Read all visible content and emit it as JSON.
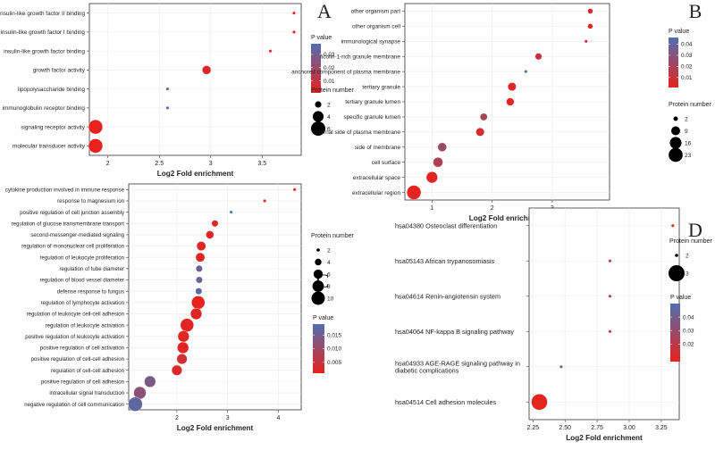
{
  "chart_data": [
    {
      "panel": "A",
      "type": "scatter",
      "xlabel": "Log2 Fold enrichment",
      "xlim": [
        1.82,
        3.88
      ],
      "xticks": [
        2,
        2.5,
        3,
        3.5
      ],
      "xtick_labels": [
        "2",
        "2.5",
        "3",
        "3.5"
      ],
      "categories": [
        "insulin-like growth factor II binding",
        "insulin-like growth factor I binding",
        "insulin-like growth factor binding",
        "growth factor activity",
        "lipopolysaccharide binding",
        "immunoglobulin receptor binding",
        "signaling receptor activity",
        "molecular transducer activity"
      ],
      "points": [
        {
          "x": 3.81,
          "pvalue": 0.003,
          "count": 1
        },
        {
          "x": 3.81,
          "pvalue": 0.003,
          "count": 1
        },
        {
          "x": 3.58,
          "pvalue": 0.005,
          "count": 1
        },
        {
          "x": 2.96,
          "pvalue": 0.004,
          "count": 3
        },
        {
          "x": 2.58,
          "pvalue": 0.037,
          "count": 1
        },
        {
          "x": 2.58,
          "pvalue": 0.037,
          "count": 1
        },
        {
          "x": 1.88,
          "pvalue": 0.001,
          "count": 6
        },
        {
          "x": 1.88,
          "pvalue": 0.001,
          "count": 6
        }
      ],
      "pvalue_legend": {
        "title": "P value",
        "ticks": [
          0.03,
          0.02,
          0.01
        ],
        "tick_labels": [
          "0.03",
          "0.02",
          "0.01"
        ],
        "range": [
          0.001,
          0.038
        ]
      },
      "size_legend": {
        "title": "Protein number",
        "values": [
          2,
          4,
          6
        ],
        "labels": [
          "2",
          "4",
          "6"
        ],
        "range": [
          1,
          6
        ]
      }
    },
    {
      "panel": "B",
      "type": "scatter",
      "xlabel": "Log2 Fold enrichment",
      "xlim": [
        0.55,
        3.95
      ],
      "xticks": [
        1,
        2,
        3
      ],
      "xtick_labels": [
        "1",
        "2",
        "3"
      ],
      "categories": [
        "other organism part",
        "other organism cell",
        "immunological synapse",
        "ficolin-1-rich granule membrane",
        "anchored component of plasma membrane",
        "tertiary granule",
        "tertiary granule lumen",
        "specific granule lumen",
        "external side of plasma membrane",
        "side of membrane",
        "cell surface",
        "extracellular space",
        "extracellular region"
      ],
      "points": [
        {
          "x": 3.63,
          "pvalue": 0.004,
          "count": 3
        },
        {
          "x": 3.63,
          "pvalue": 0.004,
          "count": 3
        },
        {
          "x": 3.56,
          "pvalue": 0.004,
          "count": 1
        },
        {
          "x": 2.77,
          "pvalue": 0.01,
          "count": 5
        },
        {
          "x": 2.56,
          "pvalue": 0.045,
          "count": 1
        },
        {
          "x": 2.33,
          "pvalue": 0.004,
          "count": 8
        },
        {
          "x": 2.3,
          "pvalue": 0.004,
          "count": 7
        },
        {
          "x": 1.86,
          "pvalue": 0.02,
          "count": 6
        },
        {
          "x": 1.8,
          "pvalue": 0.007,
          "count": 8
        },
        {
          "x": 1.17,
          "pvalue": 0.025,
          "count": 9
        },
        {
          "x": 1.1,
          "pvalue": 0.018,
          "count": 11
        },
        {
          "x": 1.0,
          "pvalue": 0.003,
          "count": 15
        },
        {
          "x": 0.7,
          "pvalue": 0.002,
          "count": 24
        }
      ],
      "pvalue_legend": {
        "title": "P value",
        "ticks": [
          0.04,
          0.03,
          0.02,
          0.01
        ],
        "tick_labels": [
          "0.04",
          "0.03",
          "0.02",
          "0.01"
        ],
        "range": [
          0.001,
          0.046
        ]
      },
      "size_legend": {
        "title": "Protein number",
        "values": [
          2,
          9,
          16,
          23
        ],
        "labels": [
          "2",
          "9",
          "16",
          "23"
        ],
        "range": [
          1,
          24
        ]
      }
    },
    {
      "panel": "C",
      "type": "scatter",
      "xlabel": "Log2 Fold enrichment",
      "xlim": [
        1.05,
        4.45
      ],
      "xticks": [
        2,
        3,
        4
      ],
      "xtick_labels": [
        "2",
        "3",
        "4"
      ],
      "categories": [
        "cytokine production involved in immune response",
        "response to magnesium ion",
        "positive regulation of cell junction assembly",
        "regulation of glucose transmembrane transport",
        "second-messenger-mediated signaling",
        "regulation of mononuclear cell proliferation",
        "regulation of leukocyte proliferation",
        "regulation of tube diameter",
        "regulation of blood vessel diameter",
        "defense response to fungus",
        "regulation of lymphocyte activation",
        "regulation of leukocyte cell-cell adhesion",
        "regulation of leukocyte activation",
        "positive regulation of leukocyte activation",
        "positive regulation of cell activation",
        "positive regulation of cell-cell adhesion",
        "regulation of cell-cell adhesion",
        "positive regulation of cell adhesion",
        "intracellular signal transduction",
        "negative regulation of cell communication"
      ],
      "points": [
        {
          "x": 4.32,
          "pvalue": 0.001,
          "count": 2
        },
        {
          "x": 3.73,
          "pvalue": 0.003,
          "count": 2
        },
        {
          "x": 3.07,
          "pvalue": 0.019,
          "count": 2
        },
        {
          "x": 2.75,
          "pvalue": 0.002,
          "count": 4
        },
        {
          "x": 2.65,
          "pvalue": 0.002,
          "count": 5
        },
        {
          "x": 2.48,
          "pvalue": 0.002,
          "count": 6
        },
        {
          "x": 2.46,
          "pvalue": 0.002,
          "count": 6
        },
        {
          "x": 2.44,
          "pvalue": 0.016,
          "count": 4
        },
        {
          "x": 2.44,
          "pvalue": 0.016,
          "count": 4
        },
        {
          "x": 2.43,
          "pvalue": 0.018,
          "count": 4
        },
        {
          "x": 2.42,
          "pvalue": 0.001,
          "count": 10
        },
        {
          "x": 2.38,
          "pvalue": 0.002,
          "count": 8
        },
        {
          "x": 2.2,
          "pvalue": 0.002,
          "count": 10
        },
        {
          "x": 2.13,
          "pvalue": 0.002,
          "count": 8
        },
        {
          "x": 2.12,
          "pvalue": 0.002,
          "count": 8
        },
        {
          "x": 2.1,
          "pvalue": 0.004,
          "count": 7
        },
        {
          "x": 2.0,
          "pvalue": 0.003,
          "count": 7
        },
        {
          "x": 1.47,
          "pvalue": 0.014,
          "count": 8
        },
        {
          "x": 1.27,
          "pvalue": 0.012,
          "count": 9
        },
        {
          "x": 1.18,
          "pvalue": 0.017,
          "count": 11
        }
      ],
      "size_legend": {
        "title": "Protein number",
        "values": [
          2,
          4,
          6,
          8,
          10
        ],
        "labels": [
          "2",
          "4",
          "6",
          "8",
          "10"
        ],
        "range": [
          2,
          11
        ]
      },
      "pvalue_legend": {
        "title": "P value",
        "ticks": [
          0.015,
          0.01,
          0.005
        ],
        "tick_labels": [
          "0.015",
          "0.010",
          "0.005"
        ],
        "range": [
          0.001,
          0.019
        ]
      }
    },
    {
      "panel": "D",
      "type": "scatter",
      "xlabel": "Log2 Fold enrichment",
      "xlim": [
        2.22,
        3.39
      ],
      "xticks": [
        2.25,
        2.5,
        2.75,
        3.0,
        3.25
      ],
      "xtick_labels": [
        "2.25",
        "2.50",
        "2.75",
        "3.00",
        "3.25"
      ],
      "categories": [
        "hsa04380 Osteoclast differentiation",
        "hsa05143 African trypanosomiasis",
        "hsa04614 Renin-angiotensin system",
        "hsa04064 NF-kappa B signaling pathway",
        "hsa04933 AGE-RAGE signaling pathway in diabetic complications",
        "hsa04514 Cell adhesion molecules"
      ],
      "category_lines": [
        [
          "hsa04380 Osteoclast differentiation"
        ],
        [
          "hsa05143 African trypanosomiasis"
        ],
        [
          "hsa04614 Renin-angiotensin system"
        ],
        [
          "hsa04064 NF-kappa B signaling pathway"
        ],
        [
          "hsa04933 AGE-RAGE signaling pathway in",
          "diabetic complications"
        ],
        [
          "hsa04514 Cell adhesion molecules"
        ]
      ],
      "points": [
        {
          "x": 3.34,
          "pvalue": 0.008,
          "count": 2
        },
        {
          "x": 2.85,
          "pvalue": 0.022,
          "count": 2
        },
        {
          "x": 2.85,
          "pvalue": 0.022,
          "count": 2
        },
        {
          "x": 2.85,
          "pvalue": 0.022,
          "count": 2
        },
        {
          "x": 2.47,
          "pvalue": 0.048,
          "count": 2
        },
        {
          "x": 2.3,
          "pvalue": 0.008,
          "count": 3
        }
      ],
      "size_legend": {
        "title": "Protein number",
        "values": [
          2,
          3
        ],
        "labels": [
          "2",
          "3"
        ],
        "range": [
          2,
          3
        ]
      },
      "pvalue_legend": {
        "title": "P value",
        "ticks": [
          0.04,
          0.03,
          0.02
        ],
        "tick_labels": [
          "0.04",
          "0.03",
          "0.02"
        ],
        "range": [
          0.007,
          0.05
        ]
      }
    }
  ],
  "colors": {
    "low_p": "#e8221c",
    "high_p": "#4f6fb0",
    "point_edge": "#ffffff",
    "panel_border": "#333333",
    "grid": "#ebebeb",
    "text": "#222222"
  }
}
